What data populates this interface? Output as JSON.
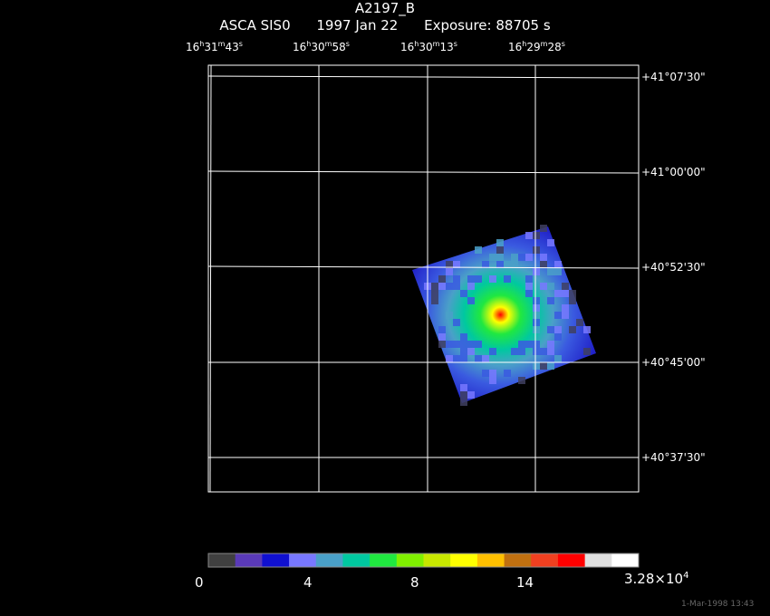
{
  "header": {
    "title": "A2197_B",
    "instrument": "ASCA SIS0",
    "date": "1997 Jan 22",
    "exposure": "Exposure: 88705 s"
  },
  "ra_labels": [
    {
      "h": "16",
      "m": "31",
      "s": "43"
    },
    {
      "h": "16",
      "m": "30",
      "s": "58"
    },
    {
      "h": "16",
      "m": "30",
      "s": "13"
    },
    {
      "h": "16",
      "m": "29",
      "s": "28"
    }
  ],
  "dec_labels": [
    "+41°07'30\"",
    "+41°00'00\"",
    "+40°52'30\"",
    "+40°45'00\"",
    "+40°37'30\""
  ],
  "colorbar": {
    "colors": [
      "#404040",
      "#5a3ab8",
      "#1010d0",
      "#7878ff",
      "#4aa0c8",
      "#00c8a0",
      "#20e840",
      "#80f000",
      "#c8e800",
      "#ffff00",
      "#ffc000",
      "#c07010",
      "#f04020",
      "#ff0000",
      "#e0e0e0",
      "#ffffff"
    ],
    "tick_labels": [
      "0",
      "4",
      "8",
      "14"
    ],
    "max_label_mantissa": "3.28×10",
    "max_label_exp": "4"
  },
  "footer": {
    "timestamp": "1-Mar-1998 13:43"
  }
}
